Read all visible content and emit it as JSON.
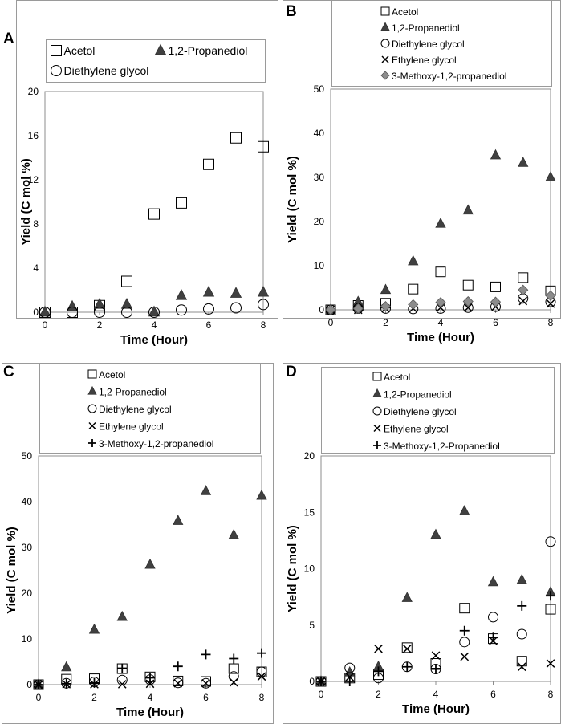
{
  "colors": {
    "triangle_fill": "#404040",
    "diamond_fill": "#8c8c8c",
    "frame": "#9a9a9a"
  },
  "chart_data": [
    {
      "panel": "A",
      "type": "scatter",
      "xlabel": "Time (Hour)",
      "ylabel": "Yield (C mol %)",
      "xlim": [
        0,
        8
      ],
      "ylim": [
        0,
        20
      ],
      "x_ticks": [
        "0",
        "2",
        "4",
        "6",
        "8"
      ],
      "y_ticks": [
        "0",
        "4",
        "8",
        "12",
        "16",
        "20"
      ],
      "series": [
        {
          "name": "Acetol",
          "marker": "square",
          "x": [
            0,
            1,
            2,
            3,
            4,
            5,
            6,
            7,
            8
          ],
          "values": [
            0,
            0,
            0.6,
            2.8,
            8.9,
            9.9,
            13.4,
            15.8,
            15
          ]
        },
        {
          "name": "1,2-Propanediol",
          "marker": "triangle",
          "x": [
            0,
            1,
            2,
            3,
            4,
            5,
            6,
            7,
            8
          ],
          "values": [
            0,
            0.5,
            0.7,
            0.7,
            0,
            1.5,
            1.8,
            1.7,
            1.8
          ]
        },
        {
          "name": "Diethylene glycol",
          "marker": "circle",
          "x": [
            0,
            1,
            2,
            3,
            4,
            5,
            6,
            7,
            8
          ],
          "values": [
            0,
            0,
            0,
            0,
            0,
            0.2,
            0.3,
            0.4,
            0.7
          ]
        }
      ]
    },
    {
      "panel": "B",
      "type": "scatter",
      "xlabel": "Time (Hour)",
      "ylabel": "Yield (C mol %)",
      "xlim": [
        0,
        8
      ],
      "ylim": [
        0,
        50
      ],
      "x_ticks": [
        "0",
        "2",
        "4",
        "6",
        "8"
      ],
      "y_ticks": [
        "0",
        "10",
        "20",
        "30",
        "40",
        "50"
      ],
      "series": [
        {
          "name": "Acetol",
          "marker": "square",
          "x": [
            0,
            1,
            2,
            3,
            4,
            5,
            6,
            7,
            8
          ],
          "values": [
            0,
            1,
            1.5,
            4.7,
            8.6,
            5.6,
            5.2,
            7.3,
            4.3
          ]
        },
        {
          "name": "1,2-Propanediol",
          "marker": "triangle",
          "x": [
            0,
            1,
            2,
            3,
            4,
            5,
            6,
            7,
            8
          ],
          "values": [
            0,
            1.8,
            4.5,
            11,
            19.5,
            22.5,
            35,
            33.3,
            30
          ]
        },
        {
          "name": "Diethylene glycol",
          "marker": "circle",
          "x": [
            0,
            1,
            2,
            3,
            4,
            5,
            6,
            7,
            8
          ],
          "values": [
            0,
            0.3,
            0.3,
            0.2,
            0.3,
            0.5,
            0.7,
            2.6,
            1.8
          ]
        },
        {
          "name": "Ethylene glycol",
          "marker": "x",
          "x": [
            0,
            1,
            2,
            3,
            4,
            5,
            6,
            7,
            8
          ],
          "values": [
            0,
            0,
            0.3,
            0.3,
            0.5,
            0.5,
            0.7,
            2,
            1.4
          ]
        },
        {
          "name": "3-Methoxy-1,2-propanediol",
          "marker": "diamond",
          "x": [
            0,
            1,
            2,
            3,
            4,
            5,
            6,
            7,
            8
          ],
          "values": [
            0,
            0.3,
            0.8,
            1.2,
            1.7,
            1.9,
            1.8,
            4.5,
            3.2
          ]
        }
      ]
    },
    {
      "panel": "C",
      "type": "scatter",
      "xlabel": "Time (Hour)",
      "ylabel": "Yield (C mol %)",
      "xlim": [
        0,
        8
      ],
      "ylim": [
        0,
        50
      ],
      "x_ticks": [
        "0",
        "2",
        "4",
        "6",
        "8"
      ],
      "y_ticks": [
        "0",
        "10",
        "20",
        "30",
        "40",
        "50"
      ],
      "series": [
        {
          "name": "Acetol",
          "marker": "square",
          "x": [
            0,
            1,
            2,
            3,
            4,
            5,
            6,
            7,
            8
          ],
          "values": [
            0,
            1.2,
            1.3,
            3.5,
            1.7,
            0.8,
            0.7,
            3.5,
            2.8
          ]
        },
        {
          "name": "1,2-Propanediol",
          "marker": "triangle",
          "x": [
            0,
            1,
            2,
            3,
            4,
            5,
            6,
            7,
            8
          ],
          "values": [
            0,
            3.8,
            12,
            14.8,
            26.2,
            35.8,
            42.3,
            32.7,
            41.3
          ]
        },
        {
          "name": "Diethylene glycol",
          "marker": "circle",
          "x": [
            0,
            1,
            2,
            3,
            4,
            5,
            6,
            7,
            8
          ],
          "values": [
            0,
            0.3,
            0.6,
            1,
            1.1,
            0.4,
            0.3,
            1.8,
            2.8
          ]
        },
        {
          "name": "Ethylene glycol",
          "marker": "x",
          "x": [
            0,
            1,
            2,
            3,
            4,
            5,
            6,
            7,
            8
          ],
          "values": [
            0,
            0.1,
            0.1,
            0.1,
            0.2,
            0.3,
            0.3,
            0.5,
            1.8
          ]
        },
        {
          "name": "3-Methoxy-1,2-propanediol",
          "marker": "plus",
          "x": [
            0,
            1,
            2,
            3,
            4,
            5,
            6,
            7,
            8
          ],
          "values": [
            0,
            0.2,
            0.4,
            3.6,
            1.5,
            4,
            6.6,
            5.7,
            6.9
          ]
        }
      ]
    },
    {
      "panel": "D",
      "type": "scatter",
      "xlabel": "Time (Hour)",
      "ylabel": "Yield (C mol %)",
      "xlim": [
        0,
        8
      ],
      "ylim": [
        0,
        20
      ],
      "x_ticks": [
        "0",
        "2",
        "4",
        "6",
        "8"
      ],
      "y_ticks": [
        "0",
        "5",
        "10",
        "15",
        "20"
      ],
      "series": [
        {
          "name": "Acetol",
          "marker": "square",
          "x": [
            0,
            1,
            2,
            3,
            4,
            5,
            6,
            7,
            8
          ],
          "values": [
            0,
            0.3,
            0.6,
            3,
            1.6,
            6.5,
            3.8,
            1.8,
            6.4
          ]
        },
        {
          "name": "1,2-Propanediol",
          "marker": "triangle",
          "x": [
            0,
            1,
            2,
            3,
            4,
            5,
            6,
            7,
            8
          ],
          "values": [
            0,
            0.8,
            1.3,
            7.4,
            13,
            15.1,
            8.8,
            9,
            7.9
          ]
        },
        {
          "name": "Diethylene glycol",
          "marker": "circle",
          "x": [
            0,
            1,
            2,
            3,
            4,
            5,
            6,
            7,
            8
          ],
          "values": [
            0,
            1.2,
            0.3,
            1.3,
            1.1,
            3.5,
            5.7,
            4.2,
            12.4
          ]
        },
        {
          "name": "Ethylene glycol",
          "marker": "x",
          "x": [
            0,
            1,
            2,
            3,
            4,
            5,
            6,
            7,
            8
          ],
          "values": [
            0,
            0.4,
            2.9,
            2.9,
            2.3,
            2.2,
            3.6,
            1.3,
            1.6
          ]
        },
        {
          "name": "3-Methoxy-1,2-Propanediol",
          "marker": "plus",
          "x": [
            0,
            1,
            2,
            3,
            4,
            5,
            6,
            7,
            8
          ],
          "values": [
            0,
            0,
            0.9,
            1.3,
            1.1,
            4.5,
            3.9,
            6.7,
            7.6
          ]
        }
      ]
    }
  ]
}
